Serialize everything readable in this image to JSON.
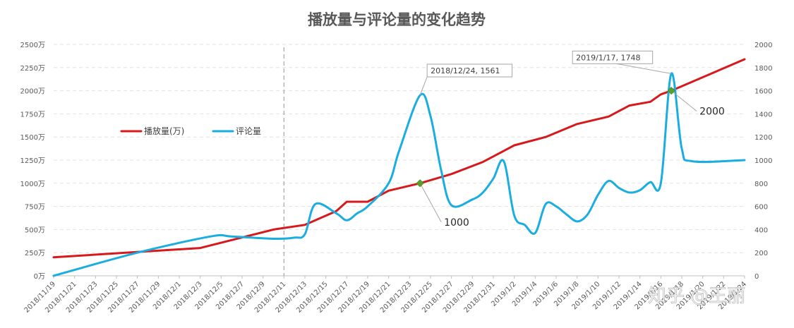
{
  "chart_data": {
    "type": "line",
    "title": "播放量与评论量的变化趋势",
    "x_dates": [
      "2018/11/19",
      "2018/11/21",
      "2018/11/23",
      "2018/11/25",
      "2018/11/27",
      "2018/11/29",
      "2018/12/1",
      "2018/12/3",
      "2018/12/5",
      "2018/12/7",
      "2018/12/9",
      "2018/12/11",
      "2018/12/13",
      "2018/12/15",
      "2018/12/17",
      "2018/12/19",
      "2018/12/21",
      "2018/12/23",
      "2018/12/25",
      "2018/12/27",
      "2018/12/29",
      "2018/12/31",
      "2019/1/2",
      "2019/1/4",
      "2019/1/6",
      "2019/1/8",
      "2019/1/10",
      "2019/1/12",
      "2019/1/14",
      "2019/1/16",
      "2019/1/18",
      "2019/1/20",
      "2019/1/22",
      "2019/1/24"
    ],
    "x_ticks": [
      "2018/11/19",
      "2018/11/21",
      "2018/11/23",
      "2018/11/25",
      "2018/11/27",
      "2018/11/29",
      "2018/12/1",
      "2018/12/3",
      "2018/12/5",
      "2018/12/7",
      "2018/12/9",
      "2018/12/11",
      "2018/12/13",
      "2018/12/15",
      "2018/12/17",
      "2018/12/19",
      "2018/12/21",
      "2018/12/23",
      "2018/12/25",
      "2018/12/27",
      "2018/12/29",
      "2018/12/31",
      "2019/1/2",
      "2019/1/4",
      "2019/1/6",
      "2019/1/8",
      "2019/1/10",
      "2019/1/12",
      "2019/1/14",
      "2019/1/16",
      "2019/1/18",
      "2019/1/20",
      "2019/1/22",
      "2019/1/24"
    ],
    "y_left_ticks": [
      "0万",
      "250万",
      "500万",
      "750万",
      "1000万",
      "1250万",
      "1500万",
      "1750万",
      "2000万",
      "2250万",
      "2500万"
    ],
    "y_left_range": [
      0,
      2500
    ],
    "y_right_ticks": [
      "0",
      "200",
      "400",
      "600",
      "800",
      "1000",
      "1200",
      "1400",
      "1600",
      "1800",
      "2000"
    ],
    "y_right_range": [
      0,
      2000
    ],
    "legend_position": "left-middle",
    "grid": "horizontal-dashed",
    "series": [
      {
        "name": "播放量(万)",
        "axis": "left",
        "color": "#d7191c",
        "points": [
          [
            "2018/11/19",
            200
          ],
          [
            "2018/12/3",
            300
          ],
          [
            "2018/12/10",
            500
          ],
          [
            "2018/12/13",
            550
          ],
          [
            "2018/12/16",
            700
          ],
          [
            "2018/12/17",
            800
          ],
          [
            "2018/12/19",
            800
          ],
          [
            "2018/12/21",
            920
          ],
          [
            "2018/12/24",
            1000
          ],
          [
            "2018/12/27",
            1100
          ],
          [
            "2018/12/30",
            1230
          ],
          [
            "2019/1/1",
            1350
          ],
          [
            "2019/1/2",
            1410
          ],
          [
            "2019/1/5",
            1500
          ],
          [
            "2019/1/8",
            1640
          ],
          [
            "2019/1/11",
            1720
          ],
          [
            "2019/1/13",
            1840
          ],
          [
            "2019/1/15",
            1880
          ],
          [
            "2019/1/16",
            1960
          ],
          [
            "2019/1/17",
            2000
          ],
          [
            "2019/1/24",
            2340
          ]
        ]
      },
      {
        "name": "评论量",
        "axis": "right",
        "color": "#1aade0",
        "points": [
          [
            "2018/11/19",
            0
          ],
          [
            "2018/11/27",
            200
          ],
          [
            "2018/12/4",
            340
          ],
          [
            "2018/12/6",
            340
          ],
          [
            "2018/12/10",
            320
          ],
          [
            "2018/12/12",
            330
          ],
          [
            "2018/12/13",
            360
          ],
          [
            "2018/12/14",
            620
          ],
          [
            "2018/12/16",
            540
          ],
          [
            "2018/12/17",
            480
          ],
          [
            "2018/12/18",
            540
          ],
          [
            "2018/12/19",
            600
          ],
          [
            "2018/12/21",
            800
          ],
          [
            "2018/12/22",
            1080
          ],
          [
            "2018/12/24",
            1561
          ],
          [
            "2018/12/25",
            1380
          ],
          [
            "2018/12/26",
            920
          ],
          [
            "2018/12/27",
            610
          ],
          [
            "2018/12/29",
            660
          ],
          [
            "2018/12/30",
            720
          ],
          [
            "2018/12/31",
            840
          ],
          [
            "2019/1/1",
            990
          ],
          [
            "2019/1/2",
            520
          ],
          [
            "2019/1/3",
            440
          ],
          [
            "2019/1/4",
            370
          ],
          [
            "2019/1/5",
            620
          ],
          [
            "2019/1/6",
            600
          ],
          [
            "2019/1/7",
            530
          ],
          [
            "2019/1/8",
            470
          ],
          [
            "2019/1/9",
            530
          ],
          [
            "2019/1/10",
            700
          ],
          [
            "2019/1/11",
            820
          ],
          [
            "2019/1/12",
            760
          ],
          [
            "2019/1/13",
            720
          ],
          [
            "2019/1/14",
            740
          ],
          [
            "2019/1/15",
            810
          ],
          [
            "2019/1/16",
            800
          ],
          [
            "2019/1/17",
            1748
          ],
          [
            "2019/1/18",
            1100
          ],
          [
            "2019/1/19",
            990
          ],
          [
            "2019/1/24",
            1000
          ]
        ]
      }
    ],
    "callouts": [
      {
        "label": "2018/12/24, 1561",
        "date": "2018/12/24",
        "series": "评论量"
      },
      {
        "label": "2019/1/17, 1748",
        "date": "2019/1/17",
        "series": "评论量"
      }
    ],
    "point_labels": [
      {
        "label": "1000",
        "date": "2018/12/24",
        "series": "播放量(万)"
      },
      {
        "label": "2000",
        "date": "2019/1/17",
        "series": "播放量(万)"
      }
    ],
    "reference_line": {
      "date": "2018/12/11",
      "style": "dashed"
    },
    "watermark": "知乎 @王丽"
  }
}
